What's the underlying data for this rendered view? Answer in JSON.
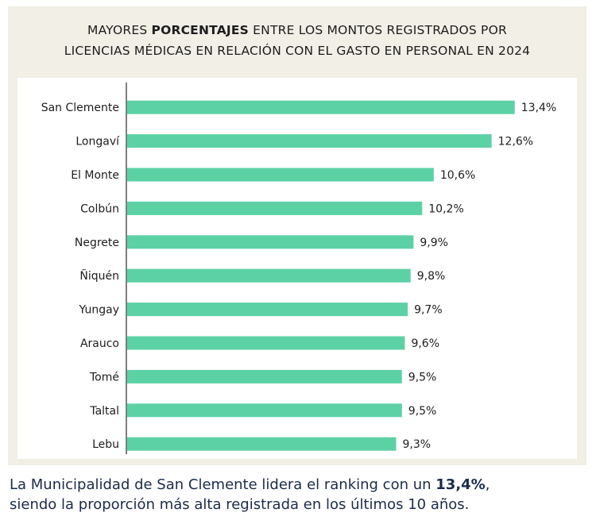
{
  "chart_data": {
    "type": "bar",
    "orientation": "horizontal",
    "title_line1_pre": "MAYORES ",
    "title_line1_bold": "PORCENTAJES",
    "title_line1_post": " ENTRE LOS MONTOS REGISTRADOS POR",
    "title_line2": "LICENCIAS MÉDICAS EN RELACIÓN CON EL GASTO EN PERSONAL EN 2024",
    "categories": [
      "San Clemente",
      "Longaví",
      "El Monte",
      "Colbún",
      "Negrete",
      "Ñiquén",
      "Yungay",
      "Arauco",
      "Tomé",
      "Taltal",
      "Lebu"
    ],
    "values": [
      13.4,
      12.6,
      10.6,
      10.2,
      9.9,
      9.8,
      9.7,
      9.6,
      9.5,
      9.5,
      9.3
    ],
    "value_labels": [
      "13,4%",
      "12,6%",
      "10,6%",
      "10,2%",
      "9,9%",
      "9,8%",
      "9,7%",
      "9,6%",
      "9,5%",
      "9,5%",
      "9,3%"
    ],
    "xlim": [
      0,
      14.5
    ],
    "bar_color": "#5dd1a6",
    "grid": false
  },
  "caption": {
    "line1_pre": "La Municipalidad de San Clemente lidera el ranking con un ",
    "line1_bold": "13,4%",
    "line1_post": ",",
    "line2": "siendo la proporción más alta registrada en los últimos 10 años."
  }
}
